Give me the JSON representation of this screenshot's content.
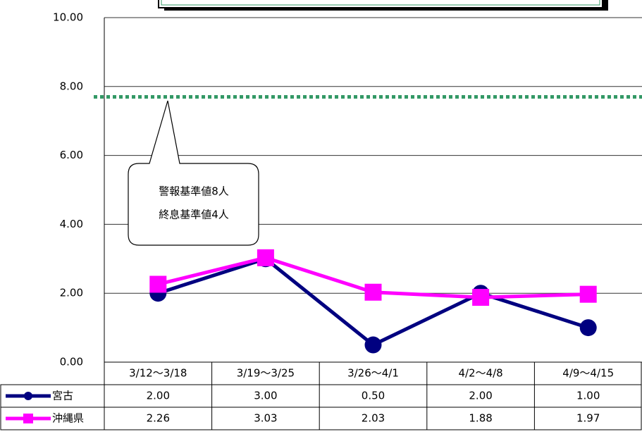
{
  "chart_data": {
    "type": "line",
    "categories": [
      "3/12～3/18",
      "3/19～3/25",
      "3/26～4/1",
      "4/2～4/8",
      "4/9～4/15"
    ],
    "series": [
      {
        "name": "宮古",
        "color": "#000080",
        "values": [
          2,
          3,
          0.5,
          2,
          1
        ],
        "value_labels": [
          "2.00",
          "3.00",
          "0.50",
          "2.00",
          "1.00"
        ]
      },
      {
        "name": "沖縄県",
        "color": "#ff00ff",
        "values": [
          2.26,
          3.03,
          2.03,
          1.88,
          1.97
        ],
        "value_labels": [
          "2.26",
          "3.03",
          "2.03",
          "1.88",
          "1.97"
        ]
      }
    ],
    "ylim": [
      0,
      10
    ],
    "yticks": [
      {
        "value": 0,
        "label": "0.00"
      },
      {
        "value": 2,
        "label": "2.00"
      },
      {
        "value": 4,
        "label": "4.00"
      },
      {
        "value": 6,
        "label": "6.00"
      },
      {
        "value": 8,
        "label": "8.00"
      },
      {
        "value": 10,
        "label": "10.00"
      }
    ],
    "grid": true,
    "reference_line": {
      "value": 7.7,
      "color": "#339966"
    },
    "annotations": [
      "警報基準値8人",
      "終息基準値4人"
    ]
  }
}
